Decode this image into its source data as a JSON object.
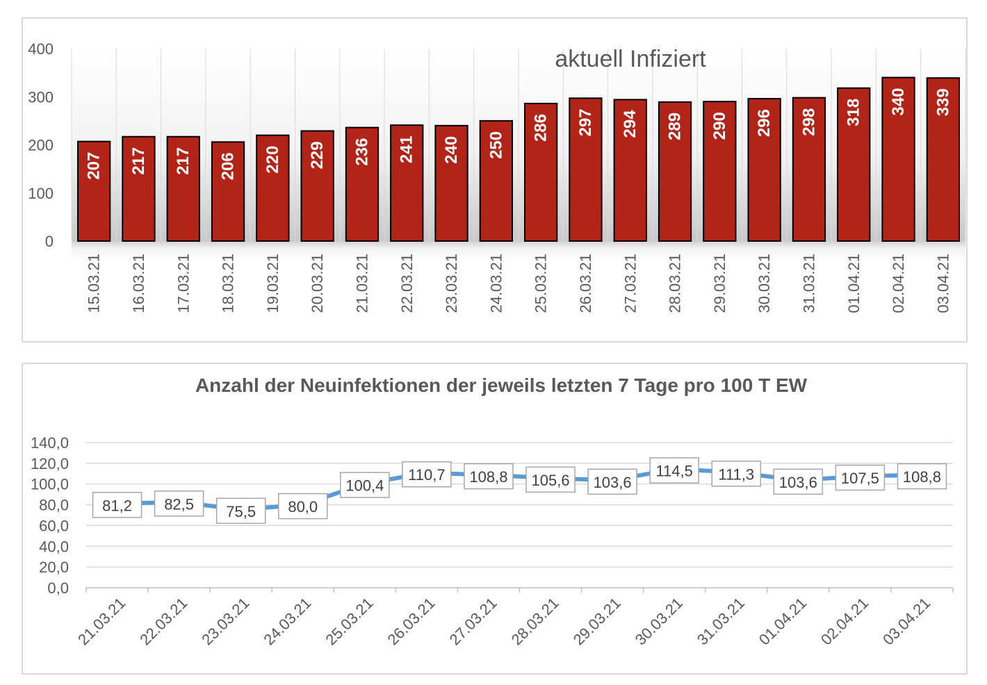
{
  "chart_data": [
    {
      "type": "bar",
      "title": "aktuell Infiziert",
      "categories": [
        "15.03.21",
        "16.03.21",
        "17.03.21",
        "18.03.21",
        "19.03.21",
        "20.03.21",
        "21.03.21",
        "22.03.21",
        "23.03.21",
        "24.03.21",
        "25.03.21",
        "26.03.21",
        "27.03.21",
        "28.03.21",
        "29.03.21",
        "30.03.21",
        "31.03.21",
        "01.04.21",
        "02.04.21",
        "03.04.21"
      ],
      "values": [
        207,
        217,
        217,
        206,
        220,
        229,
        236,
        241,
        240,
        250,
        286,
        297,
        294,
        289,
        290,
        296,
        298,
        318,
        340,
        339
      ],
      "yticks": [
        "0",
        "100",
        "200",
        "300",
        "400"
      ],
      "ylim": [
        0,
        400
      ],
      "grid": true,
      "colors": {
        "bar": "#b22418",
        "bar_border": "#000000",
        "label": "#ffffff"
      }
    },
    {
      "type": "line",
      "title": "Anzahl der Neuinfektionen der jeweils letzten 7 Tage pro 100 T EW",
      "categories": [
        "21.03.21",
        "22.03.21",
        "23.03.21",
        "24.03.21",
        "25.03.21",
        "26.03.21",
        "27.03.21",
        "28.03.21",
        "29.03.21",
        "30.03.21",
        "31.03.21",
        "01.04.21",
        "02.04.21",
        "03.04.21"
      ],
      "values": [
        81.2,
        82.5,
        75.5,
        80.0,
        100.4,
        110.7,
        108.8,
        105.6,
        103.6,
        114.5,
        111.3,
        103.6,
        107.5,
        108.8
      ],
      "labels": [
        "81,2",
        "82,5",
        "75,5",
        "80,0",
        "100,4",
        "110,7",
        "108,8",
        "105,6",
        "103,6",
        "114,5",
        "111,3",
        "103,6",
        "107,5",
        "108,8"
      ],
      "yticks": [
        "0,0",
        "20,0",
        "40,0",
        "60,0",
        "80,0",
        "100,0",
        "120,0",
        "140,0"
      ],
      "ylim": [
        0,
        140
      ],
      "grid": true,
      "colors": {
        "line": "#5b9bd5"
      }
    }
  ]
}
